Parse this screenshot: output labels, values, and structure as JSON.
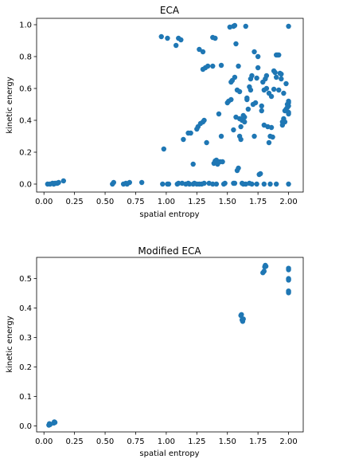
{
  "chart_data": [
    {
      "type": "scatter",
      "title": "ECA",
      "xlabel": "spatial entropy",
      "ylabel": "kinetic energy",
      "xlim": [
        -0.06,
        2.12
      ],
      "ylim": [
        -0.05,
        1.04
      ],
      "xticks": [
        "0.00",
        "0.25",
        "0.50",
        "0.75",
        "1.00",
        "1.25",
        "1.50",
        "1.75",
        "2.00"
      ],
      "yticks": [
        "0.0",
        "0.2",
        "0.4",
        "0.6",
        "0.8",
        "1.0"
      ],
      "grid": false,
      "color": "#1f77b4",
      "points": [
        [
          0.03,
          0.0
        ],
        [
          0.05,
          0.0
        ],
        [
          0.07,
          0.005
        ],
        [
          0.08,
          0.0
        ],
        [
          0.09,
          0.005
        ],
        [
          0.1,
          0.005
        ],
        [
          0.11,
          0.005
        ],
        [
          0.12,
          0.01
        ],
        [
          0.16,
          0.02
        ],
        [
          0.56,
          0.0
        ],
        [
          0.57,
          0.01
        ],
        [
          0.65,
          0.0
        ],
        [
          0.67,
          0.005
        ],
        [
          0.68,
          0.0
        ],
        [
          0.7,
          0.01
        ],
        [
          0.8,
          0.01
        ],
        [
          0.96,
          0.925
        ],
        [
          1.01,
          0.915
        ],
        [
          1.08,
          0.87
        ],
        [
          1.1,
          0.915
        ],
        [
          1.12,
          0.905
        ],
        [
          0.98,
          0.22
        ],
        [
          0.97,
          0.0
        ],
        [
          1.01,
          0.0
        ],
        [
          1.02,
          0.0
        ],
        [
          1.09,
          0.0
        ],
        [
          1.1,
          0.005
        ],
        [
          1.13,
          0.005
        ],
        [
          1.16,
          0.0
        ],
        [
          1.18,
          0.005
        ],
        [
          1.19,
          0.0
        ],
        [
          1.22,
          0.0
        ],
        [
          1.23,
          0.005
        ],
        [
          1.25,
          0.0
        ],
        [
          1.27,
          0.0
        ],
        [
          1.29,
          0.0
        ],
        [
          1.31,
          0.005
        ],
        [
          1.35,
          0.005
        ],
        [
          1.38,
          0.0
        ],
        [
          1.41,
          0.0
        ],
        [
          1.14,
          0.28
        ],
        [
          1.18,
          0.32
        ],
        [
          1.2,
          0.32
        ],
        [
          1.22,
          0.125
        ],
        [
          1.25,
          0.345
        ],
        [
          1.26,
          0.36
        ],
        [
          1.28,
          0.38
        ],
        [
          1.3,
          0.39
        ],
        [
          1.31,
          0.4
        ],
        [
          1.33,
          0.26
        ],
        [
          1.27,
          0.845
        ],
        [
          1.3,
          0.83
        ],
        [
          1.3,
          0.72
        ],
        [
          1.32,
          0.73
        ],
        [
          1.34,
          0.74
        ],
        [
          1.38,
          0.92
        ],
        [
          1.4,
          0.915
        ],
        [
          1.38,
          0.74
        ],
        [
          1.43,
          0.44
        ],
        [
          1.39,
          0.13
        ],
        [
          1.4,
          0.145
        ],
        [
          1.41,
          0.15
        ],
        [
          1.42,
          0.125
        ],
        [
          1.44,
          0.14
        ],
        [
          1.45,
          0.3
        ],
        [
          1.45,
          0.745
        ],
        [
          1.47,
          0.0
        ],
        [
          1.48,
          0.005
        ],
        [
          1.5,
          0.51
        ],
        [
          1.51,
          0.52
        ],
        [
          1.52,
          0.985
        ],
        [
          1.53,
          0.53
        ],
        [
          1.54,
          0.65
        ],
        [
          1.55,
          0.99
        ],
        [
          1.56,
          0.995
        ],
        [
          1.55,
          0.34
        ],
        [
          1.56,
          0.67
        ],
        [
          1.57,
          0.42
        ],
        [
          1.58,
          0.085
        ],
        [
          1.59,
          0.1
        ],
        [
          1.6,
          0.41
        ],
        [
          1.61,
          0.36
        ],
        [
          1.62,
          0.4
        ],
        [
          1.63,
          0.43
        ],
        [
          1.64,
          0.42
        ],
        [
          1.65,
          0.99
        ],
        [
          1.66,
          0.54
        ],
        [
          1.67,
          0.47
        ],
        [
          1.68,
          0.61
        ],
        [
          1.69,
          0.66
        ],
        [
          1.7,
          0.68
        ],
        [
          1.71,
          0.5
        ],
        [
          1.72,
          0.83
        ],
        [
          1.73,
          0.51
        ],
        [
          1.74,
          0.665
        ],
        [
          1.75,
          0.73
        ],
        [
          1.76,
          0.06
        ],
        [
          1.77,
          0.065
        ],
        [
          1.78,
          0.49
        ],
        [
          1.79,
          0.64
        ],
        [
          1.8,
          0.59
        ],
        [
          1.81,
          0.66
        ],
        [
          1.82,
          0.68
        ],
        [
          1.83,
          0.36
        ],
        [
          1.84,
          0.26
        ],
        [
          1.85,
          0.3
        ],
        [
          1.86,
          0.355
        ],
        [
          1.87,
          0.295
        ],
        [
          1.88,
          0.595
        ],
        [
          1.89,
          0.7
        ],
        [
          1.9,
          0.81
        ],
        [
          1.91,
          0.81
        ],
        [
          1.92,
          0.81
        ],
        [
          1.93,
          0.695
        ],
        [
          1.94,
          0.69
        ],
        [
          1.95,
          0.39
        ],
        [
          1.96,
          0.41
        ],
        [
          1.97,
          0.46
        ],
        [
          1.98,
          0.47
        ],
        [
          1.99,
          0.5
        ],
        [
          2.0,
          0.51
        ],
        [
          2.0,
          0.52
        ],
        [
          2.0,
          0.49
        ],
        [
          2.0,
          0.45
        ],
        [
          2.0,
          0.44
        ],
        [
          2.0,
          0.99
        ],
        [
          2.0,
          0.0
        ],
        [
          1.98,
          0.63
        ],
        [
          1.96,
          0.57
        ],
        [
          1.6,
          0.3
        ],
        [
          1.61,
          0.28
        ],
        [
          1.63,
          0.0
        ],
        [
          1.65,
          0.0
        ],
        [
          1.62,
          0.005
        ],
        [
          1.7,
          0.0
        ],
        [
          1.55,
          0.005
        ],
        [
          1.56,
          0.005
        ],
        [
          1.68,
          0.005
        ],
        [
          1.74,
          0.0
        ],
        [
          1.8,
          0.0
        ],
        [
          1.85,
          0.0
        ],
        [
          1.9,
          0.0
        ],
        [
          1.46,
          0.14
        ],
        [
          1.53,
          0.64
        ],
        [
          1.57,
          0.88
        ],
        [
          1.58,
          0.59
        ],
        [
          1.59,
          0.74
        ],
        [
          1.6,
          0.58
        ],
        [
          1.64,
          0.39
        ],
        [
          1.66,
          0.53
        ],
        [
          1.69,
          0.59
        ],
        [
          1.72,
          0.3
        ],
        [
          1.75,
          0.8
        ],
        [
          1.78,
          0.46
        ],
        [
          1.8,
          0.37
        ],
        [
          1.82,
          0.6
        ],
        [
          1.84,
          0.57
        ],
        [
          1.86,
          0.55
        ],
        [
          1.88,
          0.71
        ],
        [
          1.9,
          0.67
        ],
        [
          1.92,
          0.59
        ],
        [
          1.94,
          0.66
        ],
        [
          1.95,
          0.37
        ],
        [
          1.97,
          0.39
        ],
        [
          1.99,
          0.48
        ]
      ]
    },
    {
      "type": "scatter",
      "title": "Modified ECA",
      "xlabel": "spatial entropy",
      "ylabel": "kinetic energy",
      "xlim": [
        -0.06,
        2.12
      ],
      "ylim": [
        -0.02,
        0.572
      ],
      "xticks": [
        "0.00",
        "0.25",
        "0.50",
        "0.75",
        "1.00",
        "1.25",
        "1.50",
        "1.75",
        "2.00"
      ],
      "yticks": [
        "0.0",
        "0.1",
        "0.2",
        "0.3",
        "0.4",
        "0.5"
      ],
      "grid": false,
      "color": "#1f77b4",
      "points": [
        [
          0.04,
          0.003
        ],
        [
          0.045,
          0.008
        ],
        [
          0.05,
          0.005
        ],
        [
          0.08,
          0.01
        ],
        [
          0.085,
          0.014
        ],
        [
          0.09,
          0.012
        ],
        [
          1.61,
          0.375
        ],
        [
          1.615,
          0.378
        ],
        [
          1.62,
          0.36
        ],
        [
          1.625,
          0.355
        ],
        [
          1.63,
          0.363
        ],
        [
          1.79,
          0.52
        ],
        [
          1.8,
          0.525
        ],
        [
          1.805,
          0.54
        ],
        [
          1.81,
          0.545
        ],
        [
          1.815,
          0.542
        ],
        [
          2.0,
          0.455
        ],
        [
          2.0,
          0.452
        ],
        [
          2.0,
          0.458
        ],
        [
          2.0,
          0.495
        ],
        [
          2.0,
          0.5
        ],
        [
          2.0,
          0.497
        ],
        [
          2.0,
          0.53
        ],
        [
          2.0,
          0.535
        ]
      ]
    }
  ]
}
